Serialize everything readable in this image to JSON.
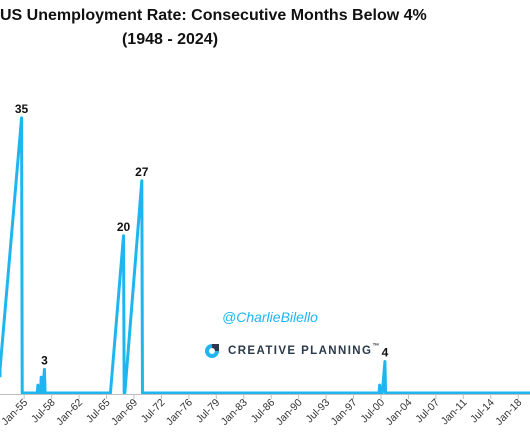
{
  "chart_data": {
    "type": "area",
    "title": "US Unemployment Rate: Consecutive Months Below 4%",
    "subtitle": "(1948 - 2024)",
    "xlabel": "",
    "ylabel": "",
    "ylim": [
      0,
      36
    ],
    "xlim": [
      "1951-12",
      "2019-07"
    ],
    "x_tick_labels": [
      "Jan-55",
      "Jul-58",
      "Jan-62",
      "Jul-65",
      "Jan-69",
      "Jul-72",
      "Jan-76",
      "Jul-79",
      "Jan-83",
      "Jul-86",
      "Jan-90",
      "Jul-93",
      "Jan-97",
      "Jul-00",
      "Jan-04",
      "Jul-07",
      "Jan-11",
      "Jul-14",
      "Jan-18"
    ],
    "x_tick_dates": [
      "1955-01",
      "1958-07",
      "1962-01",
      "1965-07",
      "1969-01",
      "1972-07",
      "1976-01",
      "1979-07",
      "1983-01",
      "1986-07",
      "1990-01",
      "1993-07",
      "1997-01",
      "2000-07",
      "2004-01",
      "2007-07",
      "2011-01",
      "2014-07",
      "2018-01"
    ],
    "grid": false,
    "series": [
      {
        "color": "#1fb6f0",
        "points": [
          [
            "1951-12",
            2
          ],
          [
            "1951-12",
            3
          ],
          [
            "1954-09",
            35
          ],
          [
            "1954-10",
            0
          ],
          [
            "1956-09",
            0
          ],
          [
            "1956-10",
            1
          ],
          [
            "1956-11",
            0
          ],
          [
            "1957-02",
            0
          ],
          [
            "1957-03",
            2
          ],
          [
            "1957-04",
            0
          ],
          [
            "1957-05",
            0
          ],
          [
            "1957-06",
            1
          ],
          [
            "1957-07",
            2
          ],
          [
            "1957-08",
            3
          ],
          [
            "1957-09",
            0
          ],
          [
            "1966-01",
            0
          ],
          [
            "1967-09",
            20
          ],
          [
            "1967-10",
            0
          ],
          [
            "1967-11",
            0
          ],
          [
            "1970-01",
            27
          ],
          [
            "1970-02",
            0
          ],
          [
            "2000-04",
            0
          ],
          [
            "2000-05",
            1
          ],
          [
            "2000-06",
            0
          ],
          [
            "2000-09",
            0
          ],
          [
            "2000-10",
            1
          ],
          [
            "2000-11",
            2
          ],
          [
            "2000-12",
            3
          ],
          [
            "2001-01",
            4
          ],
          [
            "2001-02",
            0
          ],
          [
            "2019-07",
            0
          ]
        ]
      }
    ],
    "data_labels": [
      {
        "date": "1954-09",
        "value": 35,
        "text": "35"
      },
      {
        "date": "1957-08",
        "value": 3,
        "text": "3"
      },
      {
        "date": "1967-09",
        "value": 20,
        "text": "20"
      },
      {
        "date": "1970-01",
        "value": 27,
        "text": "27"
      },
      {
        "date": "2001-01",
        "value": 4,
        "text": "4"
      }
    ]
  },
  "watermark": {
    "handle": "@CharlieBilello",
    "brand": "CREATIVE PLANNING",
    "brand_mark": "™"
  },
  "colors": {
    "series": "#1fb6f0",
    "axis": "#bfbfbf",
    "brand_text": "#2b3a4a",
    "brand_logo": "#1fb6f0"
  }
}
